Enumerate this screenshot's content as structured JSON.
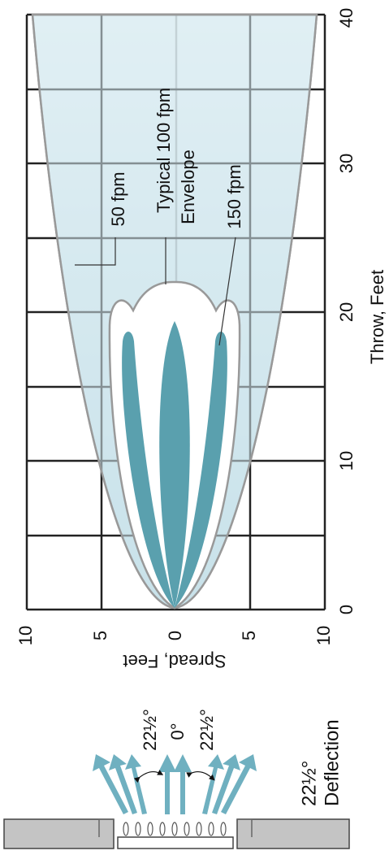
{
  "chart": {
    "spread_axis": {
      "label": "Spread, Feet",
      "ticks": [
        "10",
        "5",
        "0",
        "5",
        "10"
      ]
    },
    "throw_axis": {
      "label": "Throw, Feet",
      "ticks": [
        "0",
        "10",
        "20",
        "30",
        "40"
      ]
    },
    "annotations": {
      "outer": "50 fpm",
      "middle_line1": "Typical 100 fpm",
      "middle_line2": "Envelope",
      "inner": "150 fpm"
    }
  },
  "diffuser": {
    "left_angle": "22½°",
    "center_angle": "0°",
    "right_angle": "22½°",
    "deflection_angle": "22½°",
    "deflection_label": "Deflection"
  }
}
